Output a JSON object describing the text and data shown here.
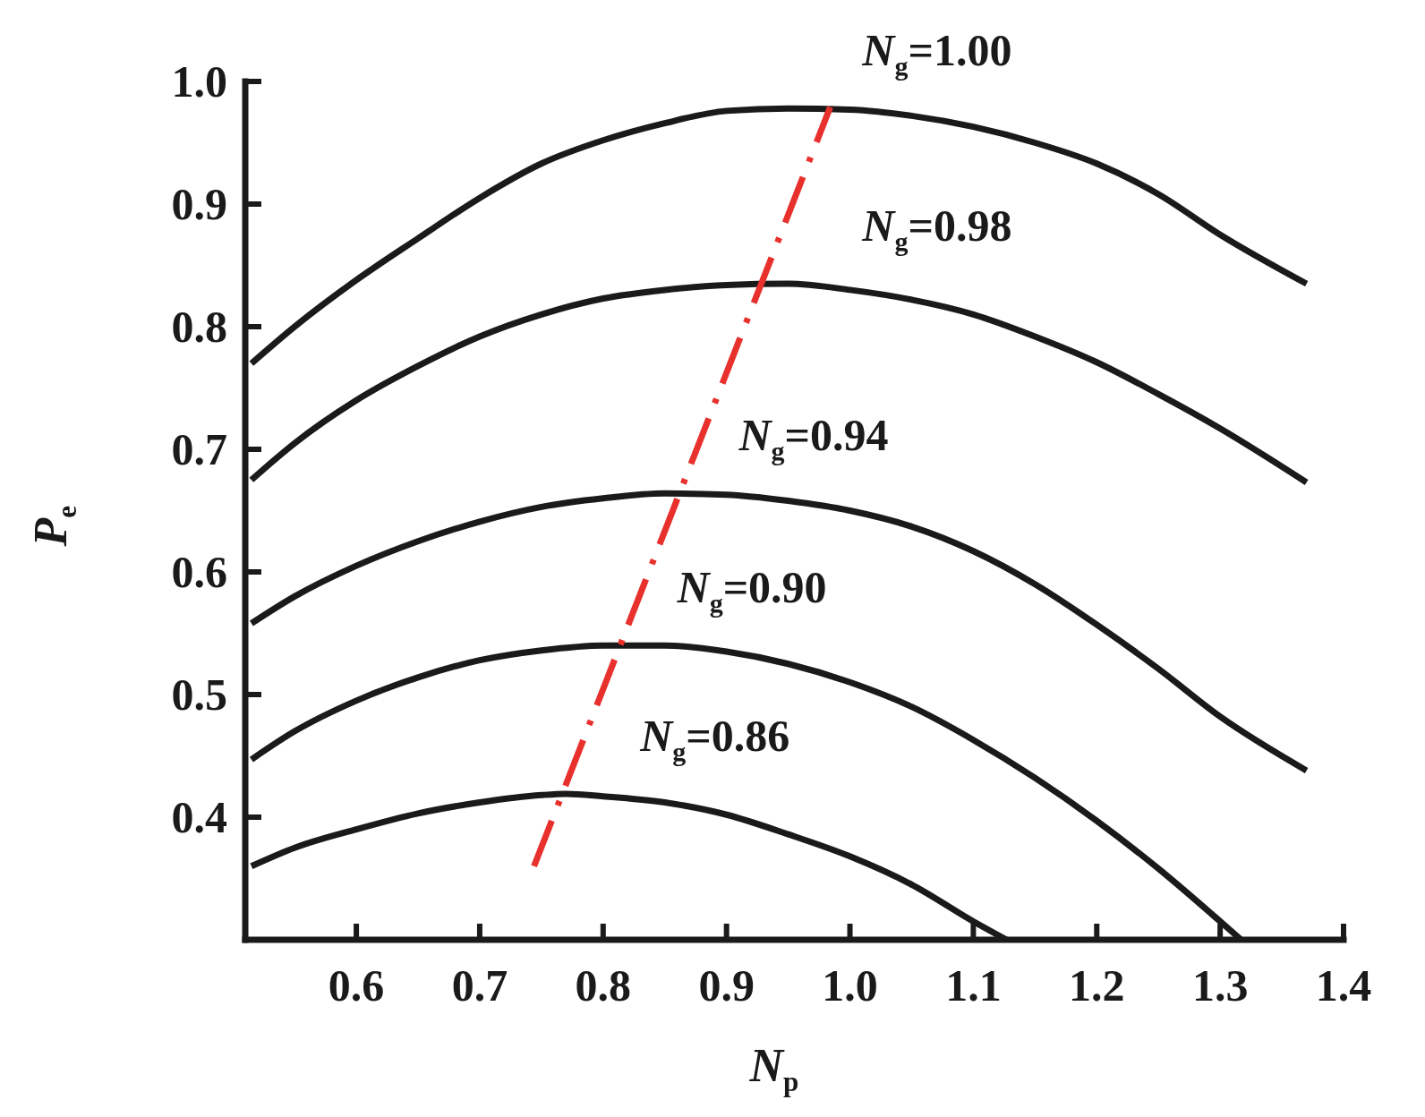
{
  "chart_data": {
    "type": "line",
    "xlabel": "N$_{p}$",
    "ylabel": "P$_{e}$",
    "xlim": [
      0.51,
      1.4
    ],
    "ylim": [
      0.3,
      1.0
    ],
    "xticks": [
      0.6,
      0.7,
      0.8,
      0.9,
      {
        "value": 1,
        "label": "1.0"
      },
      1.1,
      1.2,
      1.3,
      1.4
    ],
    "yticks": [
      0.4,
      0.5,
      0.6,
      0.7,
      0.8,
      0.9,
      {
        "value": 1,
        "label": "1.0"
      }
    ],
    "grid": false,
    "marker": "none",
    "series": [
      {
        "name": "N$_{g}$=1.00",
        "color": "#1a1a1a",
        "line_style": "solid",
        "x": [
          0.515,
          0.55,
          0.6,
          0.65,
          0.7,
          0.75,
          0.8,
          0.85,
          0.9,
          0.95,
          1.0,
          1.05,
          1.1,
          1.15,
          1.2,
          1.25,
          1.3,
          1.37
        ],
        "values": [
          0.77,
          0.8,
          0.838,
          0.872,
          0.905,
          0.933,
          0.952,
          0.966,
          0.976,
          0.978,
          0.977,
          0.972,
          0.963,
          0.95,
          0.933,
          0.908,
          0.875,
          0.835
        ]
      },
      {
        "name": "N$_{g}$=0.98",
        "color": "#1a1a1a",
        "line_style": "solid",
        "x": [
          0.515,
          0.55,
          0.6,
          0.65,
          0.7,
          0.75,
          0.8,
          0.85,
          0.9,
          0.95,
          1.0,
          1.05,
          1.1,
          1.15,
          1.2,
          1.25,
          1.3,
          1.37
        ],
        "values": [
          0.675,
          0.705,
          0.74,
          0.768,
          0.792,
          0.81,
          0.823,
          0.83,
          0.834,
          0.835,
          0.83,
          0.822,
          0.81,
          0.792,
          0.771,
          0.745,
          0.717,
          0.673
        ]
      },
      {
        "name": "N$_{g}$=0.94",
        "color": "#1a1a1a",
        "line_style": "solid",
        "x": [
          0.515,
          0.55,
          0.6,
          0.65,
          0.7,
          0.75,
          0.8,
          0.85,
          0.9,
          0.95,
          1.0,
          1.05,
          1.1,
          1.15,
          1.2,
          1.25,
          1.3,
          1.37
        ],
        "values": [
          0.558,
          0.58,
          0.605,
          0.625,
          0.641,
          0.653,
          0.66,
          0.664,
          0.663,
          0.658,
          0.65,
          0.637,
          0.617,
          0.59,
          0.557,
          0.521,
          0.482,
          0.438
        ]
      },
      {
        "name": "N$_{g}$=0.90",
        "color": "#1a1a1a",
        "line_style": "solid",
        "x": [
          0.515,
          0.55,
          0.6,
          0.65,
          0.7,
          0.75,
          0.8,
          0.85,
          0.9,
          0.95,
          1.0,
          1.05,
          1.1,
          1.15,
          1.2,
          1.25,
          1.3,
          1.317
        ],
        "values": [
          0.447,
          0.47,
          0.495,
          0.514,
          0.528,
          0.536,
          0.54,
          0.54,
          0.535,
          0.525,
          0.51,
          0.49,
          0.463,
          0.432,
          0.397,
          0.358,
          0.315,
          0.3
        ]
      },
      {
        "name": "N$_{g}$=0.86",
        "color": "#1a1a1a",
        "line_style": "solid",
        "x": [
          0.515,
          0.55,
          0.6,
          0.65,
          0.7,
          0.75,
          0.77,
          0.8,
          0.85,
          0.9,
          0.95,
          1.0,
          1.05,
          1.1,
          1.127
        ],
        "values": [
          0.36,
          0.375,
          0.39,
          0.403,
          0.412,
          0.418,
          0.419,
          0.417,
          0.412,
          0.402,
          0.386,
          0.368,
          0.345,
          0.315,
          0.3
        ]
      },
      {
        "color": "#e8302c",
        "line_style": "dashed",
        "x": [
          0.744,
          0.984
        ],
        "values": [
          0.36,
          0.979
        ]
      }
    ]
  }
}
